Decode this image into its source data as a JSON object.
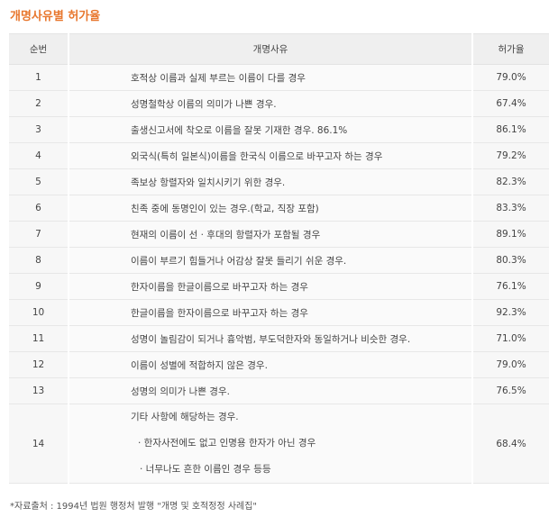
{
  "title": "개명사유별 허가율",
  "table": {
    "headers": [
      "순번",
      "개명사유",
      "허가율"
    ],
    "rows": [
      {
        "no": "1",
        "reason": "호적상 이름과 실제 부르는 이름이 다를 경우",
        "rate": "79.0%"
      },
      {
        "no": "2",
        "reason": "성명철학상 이름의 의미가 나쁜 경우.",
        "rate": "67.4%"
      },
      {
        "no": "3",
        "reason": "출생신고서에 착오로 이름을 잘못 기재한 경우. 86.1%",
        "rate": "86.1%"
      },
      {
        "no": "4",
        "reason": "외국식(특히 일본식)이름을 한국식 이름으로 바꾸고자 하는 경우",
        "rate": "79.2%"
      },
      {
        "no": "5",
        "reason": "족보상 항렬자와 일치시키기 위한 경우.",
        "rate": "82.3%"
      },
      {
        "no": "6",
        "reason": "친족 중에 동명인이 있는 경우.(학교, 직장 포함)",
        "rate": "83.3%"
      },
      {
        "no": "7",
        "reason": "현재의 이름이 선 · 후대의 항렬자가 포함될 경우",
        "rate": "89.1%"
      },
      {
        "no": "8",
        "reason": "이름이 부르기 힘들거나 어감상 잘못 들리기 쉬운 경우.",
        "rate": "80.3%"
      },
      {
        "no": "9",
        "reason": "한자이름을 한글이름으로 바꾸고자 하는 경우",
        "rate": "76.1%"
      },
      {
        "no": "10",
        "reason": "한글이름을 한자이름으로 바꾸고자 하는 경우",
        "rate": "92.3%"
      },
      {
        "no": "11",
        "reason": "성명이 놀림감이 되거나 흉악범, 부도덕한자와 동일하거나 비슷한 경우.",
        "rate": "71.0%"
      },
      {
        "no": "12",
        "reason": "이름이 성별에 적합하지 않은 경우.",
        "rate": "79.0%"
      },
      {
        "no": "13",
        "reason": "성명의 의미가 나쁜 경우.",
        "rate": "76.5%"
      }
    ],
    "last_row": {
      "no": "14",
      "reason": "기타 사항에 해당하는 경우.",
      "sub_items": [
        "· 한자사전에도 없고 인명용 한자가 아닌 경우",
        "· 너무나도 흔한 이름인 경우 등등"
      ],
      "rate": "68.4%"
    }
  },
  "source": "*자료출처 : 1994년 법원 행정처 발행 \"개명 및 호적정정 사례집\""
}
